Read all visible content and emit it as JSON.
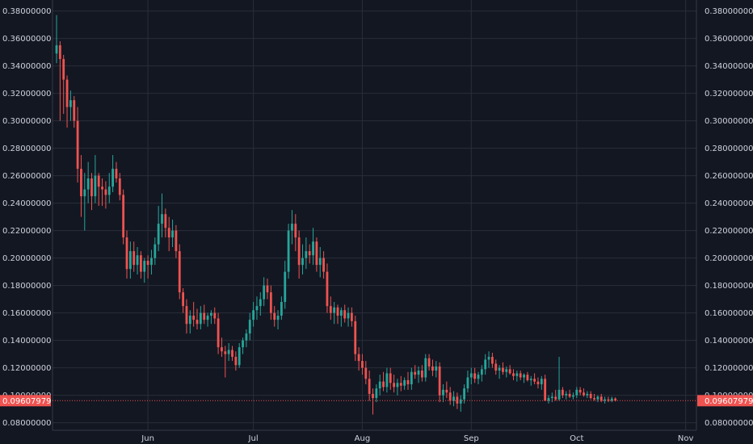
{
  "chart_data": {
    "type": "candlestick",
    "y_ticks": [
      0.08,
      0.1,
      0.12,
      0.14,
      0.16,
      0.18,
      0.2,
      0.22,
      0.24,
      0.26,
      0.28,
      0.3,
      0.32,
      0.34,
      0.36,
      0.38
    ],
    "y_tick_labels": [
      "0.08000000",
      "0.10000000",
      "0.12000000",
      "0.14000000",
      "0.16000000",
      "0.18000000",
      "0.20000000",
      "0.22000000",
      "0.24000000",
      "0.26000000",
      "0.28000000",
      "0.30000000",
      "0.32000000",
      "0.34000000",
      "0.36000000",
      "0.38000000"
    ],
    "ylim": [
      0.0745,
      0.388
    ],
    "x_ticks": [
      {
        "label": "Jun",
        "index": 26
      },
      {
        "label": "Jul",
        "index": 56
      },
      {
        "label": "Aug",
        "index": 87
      },
      {
        "label": "Sep",
        "index": 118
      },
      {
        "label": "Oct",
        "index": 148
      },
      {
        "label": "Nov",
        "index": 179
      }
    ],
    "current_price": 0.09607979,
    "current_price_label": "0.09607979",
    "colors": {
      "background": "#131722",
      "grid": "#2a2e39",
      "up": "#26a69a",
      "down": "#ef5350",
      "text": "#d1d4dc",
      "price_line": "#ef5350"
    },
    "grid": true,
    "candles_ohlc": [
      [
        0.349,
        0.377,
        0.342,
        0.355
      ],
      [
        0.355,
        0.358,
        0.3,
        0.345
      ],
      [
        0.345,
        0.348,
        0.305,
        0.33
      ],
      [
        0.33,
        0.333,
        0.295,
        0.31
      ],
      [
        0.31,
        0.322,
        0.3,
        0.315
      ],
      [
        0.315,
        0.318,
        0.295,
        0.3
      ],
      [
        0.3,
        0.31,
        0.255,
        0.265
      ],
      [
        0.265,
        0.275,
        0.23,
        0.245
      ],
      [
        0.245,
        0.262,
        0.22,
        0.25
      ],
      [
        0.25,
        0.27,
        0.24,
        0.258
      ],
      [
        0.258,
        0.262,
        0.235,
        0.245
      ],
      [
        0.245,
        0.275,
        0.24,
        0.26
      ],
      [
        0.26,
        0.262,
        0.238,
        0.252
      ],
      [
        0.252,
        0.258,
        0.238,
        0.25
      ],
      [
        0.25,
        0.256,
        0.236,
        0.246
      ],
      [
        0.246,
        0.262,
        0.24,
        0.252
      ],
      [
        0.252,
        0.275,
        0.248,
        0.265
      ],
      [
        0.265,
        0.27,
        0.255,
        0.258
      ],
      [
        0.258,
        0.262,
        0.242,
        0.246
      ],
      [
        0.246,
        0.25,
        0.21,
        0.215
      ],
      [
        0.215,
        0.22,
        0.185,
        0.192
      ],
      [
        0.192,
        0.212,
        0.185,
        0.205
      ],
      [
        0.205,
        0.212,
        0.19,
        0.195
      ],
      [
        0.195,
        0.208,
        0.188,
        0.202
      ],
      [
        0.202,
        0.205,
        0.185,
        0.19
      ],
      [
        0.19,
        0.2,
        0.182,
        0.198
      ],
      [
        0.198,
        0.202,
        0.185,
        0.195
      ],
      [
        0.195,
        0.206,
        0.188,
        0.2
      ],
      [
        0.2,
        0.215,
        0.195,
        0.21
      ],
      [
        0.21,
        0.238,
        0.205,
        0.225
      ],
      [
        0.225,
        0.247,
        0.215,
        0.232
      ],
      [
        0.232,
        0.236,
        0.215,
        0.222
      ],
      [
        0.222,
        0.23,
        0.205,
        0.215
      ],
      [
        0.215,
        0.228,
        0.208,
        0.22
      ],
      [
        0.22,
        0.224,
        0.2,
        0.205
      ],
      [
        0.205,
        0.21,
        0.17,
        0.175
      ],
      [
        0.175,
        0.178,
        0.16,
        0.165
      ],
      [
        0.165,
        0.17,
        0.145,
        0.152
      ],
      [
        0.152,
        0.162,
        0.145,
        0.158
      ],
      [
        0.158,
        0.168,
        0.15,
        0.155
      ],
      [
        0.155,
        0.163,
        0.148,
        0.152
      ],
      [
        0.152,
        0.165,
        0.148,
        0.16
      ],
      [
        0.16,
        0.166,
        0.152,
        0.155
      ],
      [
        0.155,
        0.16,
        0.15,
        0.158
      ],
      [
        0.158,
        0.162,
        0.152,
        0.16
      ],
      [
        0.16,
        0.164,
        0.152,
        0.156
      ],
      [
        0.156,
        0.16,
        0.13,
        0.135
      ],
      [
        0.135,
        0.142,
        0.128,
        0.132
      ],
      [
        0.132,
        0.136,
        0.113,
        0.13
      ],
      [
        0.13,
        0.138,
        0.125,
        0.133
      ],
      [
        0.133,
        0.136,
        0.125,
        0.128
      ],
      [
        0.128,
        0.132,
        0.118,
        0.122
      ],
      [
        0.122,
        0.138,
        0.12,
        0.135
      ],
      [
        0.135,
        0.142,
        0.13,
        0.14
      ],
      [
        0.14,
        0.148,
        0.135,
        0.145
      ],
      [
        0.145,
        0.16,
        0.14,
        0.155
      ],
      [
        0.155,
        0.168,
        0.15,
        0.162
      ],
      [
        0.162,
        0.172,
        0.155,
        0.165
      ],
      [
        0.165,
        0.175,
        0.158,
        0.17
      ],
      [
        0.17,
        0.186,
        0.165,
        0.18
      ],
      [
        0.18,
        0.185,
        0.17,
        0.175
      ],
      [
        0.175,
        0.18,
        0.155,
        0.16
      ],
      [
        0.16,
        0.165,
        0.15,
        0.155
      ],
      [
        0.155,
        0.162,
        0.148,
        0.158
      ],
      [
        0.158,
        0.172,
        0.155,
        0.168
      ],
      [
        0.168,
        0.198,
        0.163,
        0.19
      ],
      [
        0.19,
        0.225,
        0.185,
        0.22
      ],
      [
        0.22,
        0.235,
        0.21,
        0.225
      ],
      [
        0.225,
        0.232,
        0.205,
        0.215
      ],
      [
        0.215,
        0.22,
        0.185,
        0.195
      ],
      [
        0.195,
        0.21,
        0.188,
        0.2
      ],
      [
        0.2,
        0.215,
        0.192,
        0.205
      ],
      [
        0.205,
        0.21,
        0.196,
        0.202
      ],
      [
        0.202,
        0.222,
        0.195,
        0.212
      ],
      [
        0.212,
        0.215,
        0.19,
        0.195
      ],
      [
        0.195,
        0.208,
        0.186,
        0.2
      ],
      [
        0.2,
        0.205,
        0.185,
        0.19
      ],
      [
        0.19,
        0.196,
        0.16,
        0.165
      ],
      [
        0.165,
        0.172,
        0.155,
        0.16
      ],
      [
        0.16,
        0.168,
        0.152,
        0.164
      ],
      [
        0.164,
        0.166,
        0.152,
        0.158
      ],
      [
        0.158,
        0.164,
        0.15,
        0.162
      ],
      [
        0.162,
        0.166,
        0.153,
        0.156
      ],
      [
        0.156,
        0.164,
        0.15,
        0.16
      ],
      [
        0.16,
        0.164,
        0.15,
        0.154
      ],
      [
        0.154,
        0.158,
        0.125,
        0.13
      ],
      [
        0.13,
        0.135,
        0.118,
        0.125
      ],
      [
        0.125,
        0.13,
        0.115,
        0.12
      ],
      [
        0.12,
        0.125,
        0.108,
        0.112
      ],
      [
        0.112,
        0.118,
        0.096,
        0.101
      ],
      [
        0.101,
        0.105,
        0.086,
        0.098
      ],
      [
        0.098,
        0.108,
        0.095,
        0.105
      ],
      [
        0.105,
        0.115,
        0.1,
        0.11
      ],
      [
        0.11,
        0.117,
        0.103,
        0.106
      ],
      [
        0.106,
        0.12,
        0.102,
        0.116
      ],
      [
        0.116,
        0.12,
        0.104,
        0.109
      ],
      [
        0.109,
        0.115,
        0.102,
        0.106
      ],
      [
        0.106,
        0.112,
        0.1,
        0.109
      ],
      [
        0.109,
        0.114,
        0.103,
        0.107
      ],
      [
        0.107,
        0.113,
        0.104,
        0.111
      ],
      [
        0.111,
        0.117,
        0.104,
        0.108
      ],
      [
        0.108,
        0.12,
        0.104,
        0.117
      ],
      [
        0.117,
        0.122,
        0.112,
        0.115
      ],
      [
        0.115,
        0.121,
        0.109,
        0.118
      ],
      [
        0.118,
        0.122,
        0.11,
        0.113
      ],
      [
        0.113,
        0.13,
        0.11,
        0.127
      ],
      [
        0.127,
        0.13,
        0.118,
        0.121
      ],
      [
        0.121,
        0.126,
        0.114,
        0.118
      ],
      [
        0.118,
        0.125,
        0.113,
        0.121
      ],
      [
        0.121,
        0.124,
        0.095,
        0.1
      ],
      [
        0.1,
        0.108,
        0.095,
        0.104
      ],
      [
        0.104,
        0.11,
        0.098,
        0.102
      ],
      [
        0.102,
        0.106,
        0.093,
        0.096
      ],
      [
        0.096,
        0.103,
        0.092,
        0.099
      ],
      [
        0.099,
        0.102,
        0.09,
        0.094
      ],
      [
        0.094,
        0.1,
        0.088,
        0.097
      ],
      [
        0.097,
        0.108,
        0.094,
        0.105
      ],
      [
        0.105,
        0.118,
        0.102,
        0.113
      ],
      [
        0.113,
        0.12,
        0.108,
        0.116
      ],
      [
        0.116,
        0.12,
        0.109,
        0.112
      ],
      [
        0.112,
        0.117,
        0.108,
        0.115
      ],
      [
        0.115,
        0.122,
        0.11,
        0.119
      ],
      [
        0.119,
        0.13,
        0.115,
        0.126
      ],
      [
        0.126,
        0.132,
        0.12,
        0.128
      ],
      [
        0.128,
        0.131,
        0.12,
        0.123
      ],
      [
        0.123,
        0.126,
        0.115,
        0.118
      ],
      [
        0.118,
        0.122,
        0.112,
        0.12
      ],
      [
        0.12,
        0.124,
        0.115,
        0.117
      ],
      [
        0.117,
        0.121,
        0.113,
        0.119
      ],
      [
        0.119,
        0.122,
        0.115,
        0.116
      ],
      [
        0.116,
        0.119,
        0.111,
        0.114
      ],
      [
        0.114,
        0.118,
        0.11,
        0.116
      ],
      [
        0.116,
        0.118,
        0.111,
        0.113
      ],
      [
        0.113,
        0.116,
        0.109,
        0.115
      ],
      [
        0.115,
        0.117,
        0.11,
        0.111
      ],
      [
        0.111,
        0.114,
        0.107,
        0.112
      ],
      [
        0.112,
        0.116,
        0.108,
        0.11
      ],
      [
        0.11,
        0.113,
        0.105,
        0.108
      ],
      [
        0.108,
        0.114,
        0.104,
        0.112
      ],
      [
        0.112,
        0.115,
        0.103,
        0.096
      ],
      [
        0.096,
        0.1,
        0.094,
        0.098
      ],
      [
        0.098,
        0.102,
        0.095,
        0.099
      ],
      [
        0.099,
        0.104,
        0.096,
        0.097
      ],
      [
        0.097,
        0.128,
        0.096,
        0.104
      ],
      [
        0.104,
        0.106,
        0.098,
        0.1
      ],
      [
        0.1,
        0.103,
        0.097,
        0.101
      ],
      [
        0.101,
        0.104,
        0.098,
        0.099
      ],
      [
        0.099,
        0.102,
        0.097,
        0.1
      ],
      [
        0.1,
        0.106,
        0.098,
        0.104
      ],
      [
        0.104,
        0.106,
        0.1,
        0.102
      ],
      [
        0.102,
        0.105,
        0.099,
        0.1
      ],
      [
        0.1,
        0.103,
        0.098,
        0.101
      ],
      [
        0.101,
        0.103,
        0.097,
        0.098
      ],
      [
        0.098,
        0.101,
        0.096,
        0.097
      ],
      [
        0.097,
        0.1,
        0.095,
        0.099
      ],
      [
        0.099,
        0.101,
        0.095,
        0.096
      ],
      [
        0.096,
        0.099,
        0.094,
        0.097
      ],
      [
        0.097,
        0.099,
        0.095,
        0.096
      ],
      [
        0.096,
        0.099,
        0.095,
        0.0976
      ],
      [
        0.0976,
        0.0985,
        0.0955,
        0.0961
      ]
    ]
  }
}
